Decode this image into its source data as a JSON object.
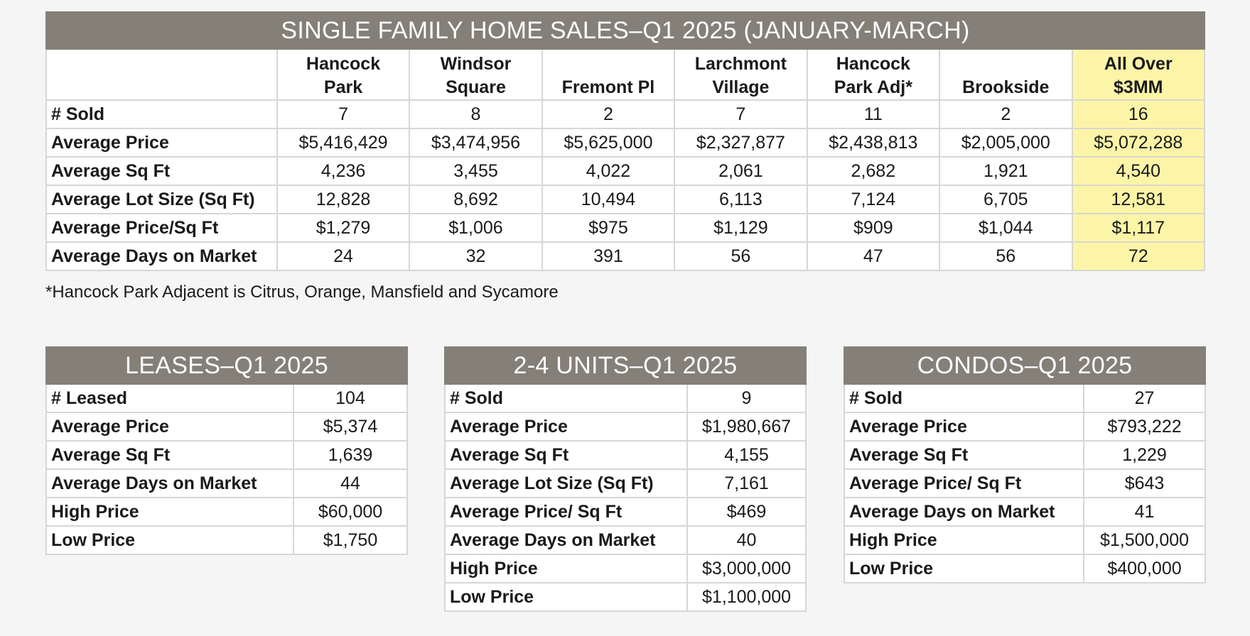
{
  "single_family": {
    "title": "SINGLE FAMILY HOME SALES–Q1 2025 (JANUARY-MARCH)",
    "columns": [
      [
        "Hancock",
        "Park"
      ],
      [
        "Windsor",
        "Square"
      ],
      [
        "",
        "Fremont Pl"
      ],
      [
        "Larchmont",
        "Village"
      ],
      [
        "Hancock",
        "Park Adj*"
      ],
      [
        "",
        "Brookside"
      ],
      [
        "All Over",
        "$3MM"
      ]
    ],
    "rows": [
      {
        "label": "# Sold",
        "values": [
          "7",
          "8",
          "2",
          "7",
          "11",
          "2",
          "16"
        ]
      },
      {
        "label": "Average Price",
        "values": [
          "$5,416,429",
          "$3,474,956",
          "$5,625,000",
          "$2,327,877",
          "$2,438,813",
          "$2,005,000",
          "$5,072,288"
        ]
      },
      {
        "label": "Average Sq Ft",
        "values": [
          "4,236",
          "3,455",
          "4,022",
          "2,061",
          "2,682",
          "1,921",
          "4,540"
        ]
      },
      {
        "label": "Average Lot Size (Sq Ft)",
        "values": [
          "12,828",
          "8,692",
          "10,494",
          "6,113",
          "7,124",
          "6,705",
          "12,581"
        ]
      },
      {
        "label": "Average Price/Sq Ft",
        "values": [
          "$1,279",
          "$1,006",
          "$975",
          "$1,129",
          "$909",
          "$1,044",
          "$1,117"
        ]
      },
      {
        "label": "Average Days on Market",
        "values": [
          "24",
          "32",
          "391",
          "56",
          "47",
          "56",
          "72"
        ]
      }
    ],
    "footnote": "*Hancock Park Adjacent is Citrus, Orange, Mansfield and Sycamore"
  },
  "leases": {
    "title": "LEASES–Q1 2025",
    "rows": [
      {
        "label": "# Leased",
        "value": "104"
      },
      {
        "label": "Average Price",
        "value": "$5,374"
      },
      {
        "label": "Average Sq Ft",
        "value": "1,639"
      },
      {
        "label": "Average Days on Market",
        "value": "44"
      },
      {
        "label": "High Price",
        "value": "$60,000"
      },
      {
        "label": "Low Price",
        "value": "$1,750"
      }
    ]
  },
  "units": {
    "title": "2-4 UNITS–Q1 2025",
    "rows": [
      {
        "label": "# Sold",
        "value": "9"
      },
      {
        "label": "Average Price",
        "value": "$1,980,667"
      },
      {
        "label": "Average Sq Ft",
        "value": "4,155"
      },
      {
        "label": "Average Lot Size (Sq Ft)",
        "value": "7,161"
      },
      {
        "label": "Average Price/ Sq Ft",
        "value": "$469"
      },
      {
        "label": "Average Days on Market",
        "value": "40"
      },
      {
        "label": "High Price",
        "value": "$3,000,000"
      },
      {
        "label": "Low Price",
        "value": "$1,100,000"
      }
    ]
  },
  "condos": {
    "title": "CONDOS–Q1 2025",
    "rows": [
      {
        "label": "# Sold",
        "value": "27"
      },
      {
        "label": "Average Price",
        "value": "$793,222"
      },
      {
        "label": "Average Sq Ft",
        "value": "1,229"
      },
      {
        "label": "Average Price/ Sq Ft",
        "value": "$643"
      },
      {
        "label": "Average Days on Market",
        "value": "41"
      },
      {
        "label": "High Price",
        "value": "$1,500,000"
      },
      {
        "label": "Low Price",
        "value": "$400,000"
      }
    ]
  }
}
